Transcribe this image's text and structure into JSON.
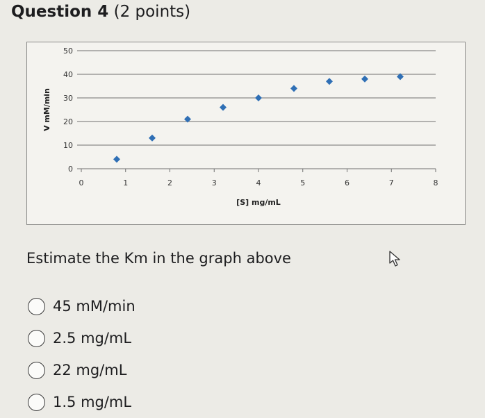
{
  "question": {
    "title": "Question 4",
    "points": "(2 points)"
  },
  "chart_data": {
    "type": "scatter",
    "xlabel": "[S] mg/mL",
    "ylabel": "V mM/min",
    "xlim": [
      0,
      8
    ],
    "ylim": [
      0,
      50
    ],
    "x_ticks": [
      "0",
      "1",
      "2",
      "3",
      "4",
      "5",
      "6",
      "7",
      "8"
    ],
    "y_ticks": [
      "0",
      "10",
      "20",
      "30",
      "40",
      "50"
    ],
    "grid": "horizontal",
    "marker_color": "#2f6fb5",
    "points": [
      {
        "x": 0.8,
        "y": 4
      },
      {
        "x": 1.6,
        "y": 13
      },
      {
        "x": 2.4,
        "y": 21
      },
      {
        "x": 3.2,
        "y": 26
      },
      {
        "x": 4.0,
        "y": 30
      },
      {
        "x": 4.8,
        "y": 34
      },
      {
        "x": 5.6,
        "y": 37
      },
      {
        "x": 6.4,
        "y": 38
      },
      {
        "x": 7.2,
        "y": 39
      }
    ]
  },
  "prompt": "Estimate the Km in the graph above",
  "options": [
    {
      "label": "45 mM/min"
    },
    {
      "label": "2.5 mg/mL"
    },
    {
      "label": "22 mg/mL"
    },
    {
      "label": "1.5 mg/mL"
    }
  ],
  "icons": {
    "cursor": "mouse-pointer-icon",
    "radio": "radio-circle-icon"
  }
}
